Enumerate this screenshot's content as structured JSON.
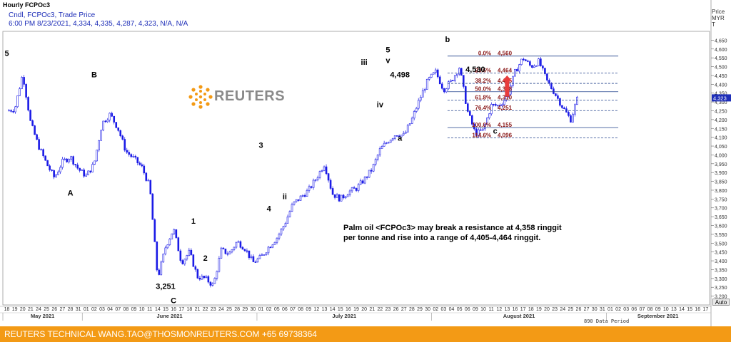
{
  "window": {
    "title": "Hourly FCPOc3"
  },
  "legend": {
    "line1": "Cndl, FCPOc3, Trade Price",
    "line2": "6:00 PM 8/23/2021, 4,334, 4,335, 4,287, 4,323, N/A, N/A"
  },
  "price_header": {
    "line1": "Price",
    "line2": "MYR",
    "line3": "T"
  },
  "logo": {
    "text": "REUTERS"
  },
  "note": {
    "line1": "Palm oil <FCPOc3> may break a resistance at 4,358 ringgit",
    "line2": "per tonne and rise into a range of 4,405-4,464 ringgit."
  },
  "footer": {
    "text": "REUTERS TECHNICAL  WANG.TAO@THOSMONREUTERS.COM  +65 69738364"
  },
  "toolbar": {
    "auto_label": "Auto",
    "period_label": "890 Data Period"
  },
  "colors": {
    "candle": "#1a1ae6",
    "fib_line": "#1f3f8a",
    "fib_label": "#8b1a1a",
    "accent_arrow": "#e83c3c",
    "footer_bg": "#f39a15"
  },
  "chart_data": {
    "type": "candlestick",
    "ylim": [
      3150,
      4700
    ],
    "y_ticks": [
      3200,
      3250,
      3300,
      3350,
      3400,
      3450,
      3500,
      3550,
      3600,
      3650,
      3700,
      3750,
      3800,
      3850,
      3900,
      3950,
      4000,
      4050,
      4100,
      4150,
      4200,
      4250,
      4300,
      4350,
      4400,
      4450,
      4500,
      4550,
      4600,
      4650
    ],
    "x_day_ticks": [
      "18",
      "19",
      "20",
      "21",
      "24",
      "25",
      "26",
      "27",
      "28",
      "31",
      "01",
      "02",
      "03",
      "04",
      "07",
      "08",
      "09",
      "10",
      "11",
      "14",
      "15",
      "16",
      "17",
      "18",
      "21",
      "22",
      "23",
      "24",
      "25",
      "28",
      "29",
      "30",
      "01",
      "02",
      "05",
      "06",
      "07",
      "08",
      "09",
      "12",
      "13",
      "14",
      "15",
      "16",
      "19",
      "20",
      "21",
      "22",
      "23",
      "26",
      "27",
      "28",
      "29",
      "30",
      "02",
      "03",
      "04",
      "05",
      "06",
      "09",
      "10",
      "11",
      "12",
      "13",
      "16",
      "17",
      "18",
      "19",
      "20",
      "23",
      "24",
      "25",
      "26",
      "27",
      "30",
      "31",
      "01",
      "02",
      "03",
      "06",
      "07",
      "08",
      "09",
      "10",
      "13",
      "14",
      "15",
      "16",
      "17"
    ],
    "x_months": [
      {
        "label": "May 2021",
        "start_idx": 0
      },
      {
        "label": "June 2021",
        "start_idx": 10
      },
      {
        "label": "July 2021",
        "start_idx": 32
      },
      {
        "label": "August 2021",
        "start_idx": 54
      },
      {
        "label": "September 2021",
        "start_idx": 76
      }
    ],
    "path": [
      [
        0,
        4250
      ],
      [
        1,
        4260
      ],
      [
        2,
        4460
      ],
      [
        3,
        4180
      ],
      [
        4,
        4050
      ],
      [
        5,
        3950
      ],
      [
        6,
        3870
      ],
      [
        7,
        3960
      ],
      [
        8,
        3990
      ],
      [
        9,
        3920
      ],
      [
        10,
        3880
      ],
      [
        11,
        3950
      ],
      [
        12,
        4180
      ],
      [
        13,
        4230
      ],
      [
        14,
        4150
      ],
      [
        15,
        4020
      ],
      [
        16,
        3980
      ],
      [
        17,
        3930
      ],
      [
        18,
        3820
      ],
      [
        19,
        3300
      ],
      [
        20,
        3480
      ],
      [
        21,
        3580
      ],
      [
        22,
        3390
      ],
      [
        23,
        3450
      ],
      [
        24,
        3310
      ],
      [
        25,
        3300
      ],
      [
        26,
        3260
      ],
      [
        27,
        3460
      ],
      [
        28,
        3440
      ],
      [
        29,
        3510
      ],
      [
        30,
        3470
      ],
      [
        31,
        3390
      ],
      [
        32,
        3420
      ],
      [
        33,
        3480
      ],
      [
        34,
        3530
      ],
      [
        35,
        3610
      ],
      [
        36,
        3720
      ],
      [
        37,
        3760
      ],
      [
        38,
        3800
      ],
      [
        39,
        3870
      ],
      [
        40,
        3950
      ],
      [
        41,
        3780
      ],
      [
        42,
        3750
      ],
      [
        43,
        3790
      ],
      [
        44,
        3810
      ],
      [
        45,
        3860
      ],
      [
        46,
        3920
      ],
      [
        47,
        4030
      ],
      [
        48,
        4080
      ],
      [
        49,
        4120
      ],
      [
        50,
        4110
      ],
      [
        51,
        4200
      ],
      [
        52,
        4320
      ],
      [
        53,
        4420
      ],
      [
        54,
        4470
      ],
      [
        55,
        4370
      ],
      [
        56,
        4420
      ],
      [
        57,
        4498
      ],
      [
        58,
        4250
      ],
      [
        59,
        4120
      ],
      [
        60,
        4140
      ],
      [
        61,
        4280
      ],
      [
        62,
        4280
      ],
      [
        63,
        4330
      ],
      [
        64,
        4470
      ],
      [
        65,
        4550
      ],
      [
        66,
        4500
      ],
      [
        67,
        4530
      ],
      [
        68,
        4420
      ],
      [
        69,
        4350
      ],
      [
        70,
        4270
      ],
      [
        71,
        4200
      ],
      [
        72,
        4340
      ]
    ],
    "wave_labels": [
      {
        "text": "5",
        "x": 0,
        "y": 4560
      },
      {
        "text": "B",
        "x": 11,
        "y": 4440
      },
      {
        "text": "A",
        "x": 8,
        "y": 3770
      },
      {
        "text": "3,251",
        "x": 20,
        "y": 3240
      },
      {
        "text": "C",
        "x": 21,
        "y": 3160
      },
      {
        "text": "1",
        "x": 23.5,
        "y": 3610
      },
      {
        "text": "2",
        "x": 25,
        "y": 3400
      },
      {
        "text": "3",
        "x": 32,
        "y": 4040
      },
      {
        "text": "4",
        "x": 33,
        "y": 3680
      },
      {
        "text": "ii",
        "x": 35,
        "y": 3750
      },
      {
        "text": "iii",
        "x": 45,
        "y": 4510
      },
      {
        "text": "5",
        "x": 48,
        "y": 4580
      },
      {
        "text": "v",
        "x": 48,
        "y": 4520
      },
      {
        "text": "4,498",
        "x": 49.5,
        "y": 4440
      },
      {
        "text": "iv",
        "x": 47,
        "y": 4270
      },
      {
        "text": "a",
        "x": 49.5,
        "y": 4080
      },
      {
        "text": "b",
        "x": 55.5,
        "y": 4640
      },
      {
        "text": "4,530",
        "x": 59,
        "y": 4470
      },
      {
        "text": "c",
        "x": 61.5,
        "y": 4120
      }
    ],
    "fib_levels": [
      {
        "label": "0.0%",
        "value": 4560,
        "value_label": "4,560",
        "style": "solid"
      },
      {
        "label": "23.6%",
        "value": 4464,
        "value_label": "4,464",
        "style": "dashed"
      },
      {
        "label": "38.2%",
        "value": 4405,
        "value_label": "4,405",
        "style": "dashed"
      },
      {
        "label": "50.0%",
        "value": 4358,
        "value_label": "4,358",
        "style": "solid"
      },
      {
        "label": "61.8%",
        "value": 4310,
        "value_label": "4,310",
        "style": "dashed"
      },
      {
        "label": "76.4%",
        "value": 4251,
        "value_label": "4,251",
        "style": "dashed"
      },
      {
        "label": "100.0%",
        "value": 4155,
        "value_label": "4,155",
        "style": "solid"
      },
      {
        "label": "114.6%",
        "value": 4096,
        "value_label": "4,096",
        "style": "dashed"
      }
    ],
    "fib_range_x": [
      55.5,
      77
    ],
    "last_price": {
      "value": 4323,
      "label": "4,323"
    },
    "arrow": {
      "x": 63,
      "y_from": 4330,
      "y_to": 4450
    }
  }
}
